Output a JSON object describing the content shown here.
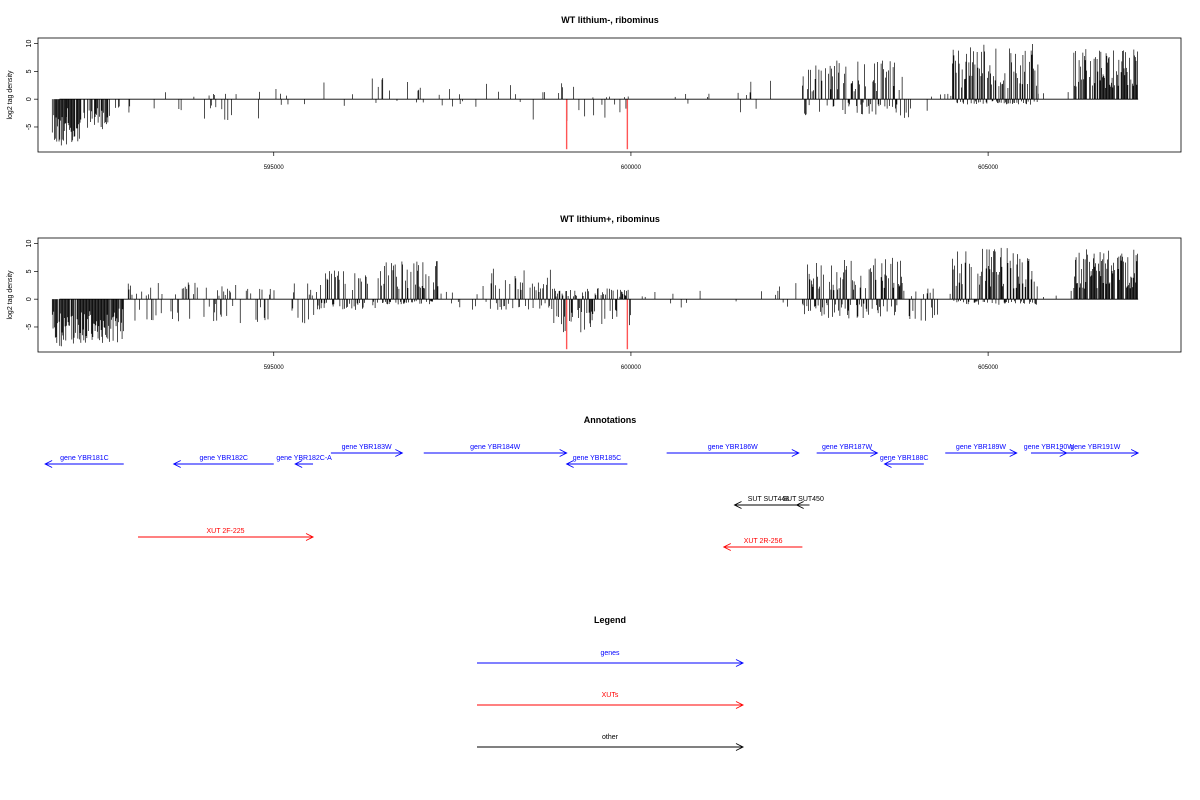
{
  "colors": {
    "gene": "#0000ff",
    "xut": "#ff0000",
    "other": "#000000",
    "highlight": "#ff5555"
  },
  "chart_data": [
    {
      "type": "bar",
      "title": "WT lithium-, ribominus",
      "ylabel": "log2 tag density",
      "xlim": [
        591700,
        607700
      ],
      "ylim": [
        -9.5,
        11
      ],
      "xticks": [
        595000,
        600000,
        605000
      ],
      "yticks": [
        -5,
        0,
        5,
        10
      ],
      "profile": [
        {
          "from": 591900,
          "to": 592100,
          "min": -8.5,
          "max": 0,
          "density": 0.9
        },
        {
          "from": 592100,
          "to": 592300,
          "min": -8.0,
          "max": 0,
          "density": 0.9
        },
        {
          "from": 592300,
          "to": 592700,
          "min": -5.5,
          "max": 0,
          "density": 0.6
        },
        {
          "from": 592700,
          "to": 593000,
          "min": -3.0,
          "max": 0,
          "density": 0.3
        },
        {
          "from": 593000,
          "to": 594000,
          "min": -2.0,
          "max": 1.5,
          "density": 0.05
        },
        {
          "from": 594000,
          "to": 594800,
          "min": -4.0,
          "max": 1.0,
          "density": 0.12
        },
        {
          "from": 594800,
          "to": 596200,
          "min": -2.0,
          "max": 3.0,
          "density": 0.06
        },
        {
          "from": 596200,
          "to": 597200,
          "min": -1.0,
          "max": 4.0,
          "density": 0.15
        },
        {
          "from": 597200,
          "to": 598600,
          "min": -1.5,
          "max": 3.0,
          "density": 0.05
        },
        {
          "from": 598600,
          "to": 599300,
          "min": -4.0,
          "max": 3.0,
          "density": 0.1
        },
        {
          "from": 599300,
          "to": 600000,
          "min": -3.5,
          "max": 0.5,
          "density": 0.3
        },
        {
          "from": 600000,
          "to": 601500,
          "min": -1.5,
          "max": 1.0,
          "density": 0.03
        },
        {
          "from": 601500,
          "to": 602400,
          "min": -3.0,
          "max": 3.5,
          "density": 0.04
        },
        {
          "from": 602400,
          "to": 603800,
          "min": -3.0,
          "max": 7.0,
          "density": 0.7
        },
        {
          "from": 603800,
          "to": 604300,
          "min": -3.5,
          "max": 1.0,
          "density": 0.15
        },
        {
          "from": 604300,
          "to": 604500,
          "min": 0,
          "max": 1.0,
          "density": 0.05
        },
        {
          "from": 604500,
          "to": 605700,
          "min": -1.0,
          "max": 10.0,
          "density": 0.95
        },
        {
          "from": 605700,
          "to": 606200,
          "min": 0,
          "max": 2.0,
          "density": 0.05
        },
        {
          "from": 606200,
          "to": 607100,
          "min": 0,
          "max": 9.0,
          "density": 0.8
        }
      ],
      "highlight_bars": [
        {
          "x": 599100,
          "y": -9.0
        },
        {
          "x": 599950,
          "y": -9.0
        }
      ]
    },
    {
      "type": "bar",
      "title": "WT lithium+, ribominus",
      "ylabel": "log2 tag density",
      "xlim": [
        591700,
        607700
      ],
      "ylim": [
        -9.5,
        11
      ],
      "xticks": [
        595000,
        600000,
        605000
      ],
      "yticks": [
        -5,
        0,
        5,
        10
      ],
      "profile": [
        {
          "from": 591900,
          "to": 592100,
          "min": -8.5,
          "max": 0,
          "density": 0.9
        },
        {
          "from": 592100,
          "to": 592900,
          "min": -8.0,
          "max": 0,
          "density": 0.95
        },
        {
          "from": 592900,
          "to": 594300,
          "min": -4.0,
          "max": 3.0,
          "density": 0.35
        },
        {
          "from": 594300,
          "to": 595600,
          "min": -4.5,
          "max": 3.0,
          "density": 0.3
        },
        {
          "from": 595600,
          "to": 596500,
          "min": -2.0,
          "max": 5.5,
          "density": 0.55
        },
        {
          "from": 596500,
          "to": 597300,
          "min": -1.0,
          "max": 7.0,
          "density": 0.9
        },
        {
          "from": 597300,
          "to": 598000,
          "min": -2.0,
          "max": 3.0,
          "density": 0.2
        },
        {
          "from": 598000,
          "to": 598900,
          "min": -2.0,
          "max": 5.5,
          "density": 0.55
        },
        {
          "from": 598900,
          "to": 600000,
          "min": -6.5,
          "max": 2.0,
          "density": 0.75
        },
        {
          "from": 600000,
          "to": 600800,
          "min": -1.5,
          "max": 1.5,
          "density": 0.06
        },
        {
          "from": 600800,
          "to": 601700,
          "min": -1.0,
          "max": 2.0,
          "density": 0.03
        },
        {
          "from": 601700,
          "to": 602400,
          "min": -2.5,
          "max": 3.0,
          "density": 0.08
        },
        {
          "from": 602400,
          "to": 603800,
          "min": -3.5,
          "max": 7.5,
          "density": 0.8
        },
        {
          "from": 603800,
          "to": 604300,
          "min": -4.0,
          "max": 2.0,
          "density": 0.25
        },
        {
          "from": 604300,
          "to": 604500,
          "min": 0,
          "max": 1.0,
          "density": 0.05
        },
        {
          "from": 604500,
          "to": 605700,
          "min": -1.0,
          "max": 9.5,
          "density": 0.95
        },
        {
          "from": 605700,
          "to": 606200,
          "min": 0,
          "max": 1.5,
          "density": 0.05
        },
        {
          "from": 606200,
          "to": 607100,
          "min": 0,
          "max": 9.0,
          "density": 0.85
        }
      ],
      "highlight_bars": [
        {
          "x": 599100,
          "y": -9.0
        },
        {
          "x": 599950,
          "y": -9.0
        }
      ]
    }
  ],
  "annotations": {
    "title": "Annotations",
    "features": [
      {
        "label": "gene YBR181C",
        "type": "gene",
        "start": 591800,
        "end": 592900,
        "strand": "-",
        "row": 1
      },
      {
        "label": "gene YBR182C",
        "type": "gene",
        "start": 593600,
        "end": 595000,
        "strand": "-",
        "row": 1
      },
      {
        "label": "gene YBR182C-A",
        "type": "gene",
        "start": 595300,
        "end": 595550,
        "strand": "-",
        "row": 1
      },
      {
        "label": "gene YBR183W",
        "type": "gene",
        "start": 595800,
        "end": 596800,
        "strand": "+",
        "row": 0
      },
      {
        "label": "gene YBR184W",
        "type": "gene",
        "start": 597100,
        "end": 599100,
        "strand": "+",
        "row": 0
      },
      {
        "label": "gene YBR185C",
        "type": "gene",
        "start": 599100,
        "end": 599950,
        "strand": "-",
        "row": 1
      },
      {
        "label": "gene YBR186W",
        "type": "gene",
        "start": 600500,
        "end": 602350,
        "strand": "+",
        "row": 0
      },
      {
        "label": "gene YBR187W",
        "type": "gene",
        "start": 602600,
        "end": 603450,
        "strand": "+",
        "row": 0
      },
      {
        "label": "gene YBR188C",
        "type": "gene",
        "start": 603550,
        "end": 604100,
        "strand": "-",
        "row": 1
      },
      {
        "label": "gene YBR189W",
        "type": "gene",
        "start": 604400,
        "end": 605400,
        "strand": "+",
        "row": 0
      },
      {
        "label": "gene YBR190W",
        "type": "gene",
        "start": 605600,
        "end": 606100,
        "strand": "+",
        "row": 0
      },
      {
        "label": "gene YBR191W",
        "type": "gene",
        "start": 605900,
        "end": 607100,
        "strand": "+",
        "row": 0
      },
      {
        "label": "SUT SUT448",
        "type": "other",
        "start": 601450,
        "end": 602400,
        "strand": "-",
        "row": 2
      },
      {
        "label": "SUT SUT450",
        "type": "other",
        "start": 602320,
        "end": 602500,
        "strand": "-",
        "row": 2
      },
      {
        "label": "XUT 2F-225",
        "type": "xut",
        "start": 593100,
        "end": 595550,
        "strand": "+",
        "row": 3
      },
      {
        "label": "XUT 2R-256",
        "type": "xut",
        "start": 601300,
        "end": 602400,
        "strand": "-",
        "row": 4
      }
    ]
  },
  "legend": {
    "title": "Legend",
    "items": [
      {
        "label": "genes",
        "type": "gene"
      },
      {
        "label": "XUTs",
        "type": "xut"
      },
      {
        "label": "other",
        "type": "other"
      }
    ]
  }
}
